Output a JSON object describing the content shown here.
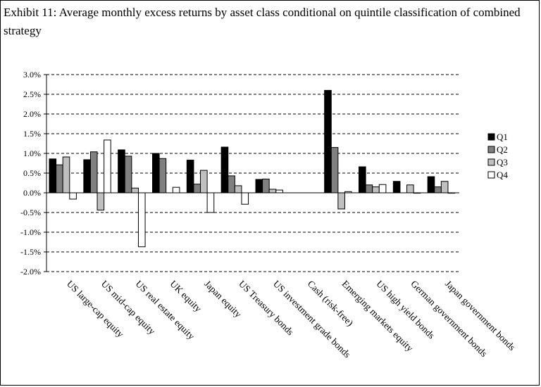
{
  "chart_data": {
    "type": "bar",
    "title": "Exhibit 11: Average monthly excess returns by asset class conditional on quintile classification of combined strategy",
    "xlabel": "",
    "ylabel": "",
    "ylim": [
      -0.02,
      0.03
    ],
    "yticks": [
      "3.0%",
      "2.5%",
      "2.0%",
      "1.5%",
      "1.0%",
      "0.5%",
      "0.0%",
      "-0.5%",
      "-1.0%",
      "-1.5%",
      "-2.0%"
    ],
    "grid": true,
    "legend_position": "right",
    "categories": [
      "US large-cap equity",
      "US mid-cap equity",
      "US real estate equity",
      "UK equity",
      "Japan equity",
      "US Treasury bonds",
      "US investment grade bonds",
      "Cash (risk-free)",
      "Emerging markets equity",
      "US high yield bonds",
      "German government bonds",
      "Japan government bonds"
    ],
    "series": [
      {
        "name": "Q1",
        "color": "#000000",
        "values": [
          0.0086,
          0.0084,
          0.0109,
          0.01,
          0.0083,
          0.0116,
          0.0034,
          0.0,
          0.026,
          0.0066,
          0.0029,
          0.0041
        ]
      },
      {
        "name": "Q2",
        "color": "#808080",
        "values": [
          0.0071,
          0.0104,
          0.0093,
          0.0087,
          0.0022,
          0.0043,
          0.0035,
          0.0,
          0.0115,
          0.002,
          0.0,
          0.0015
        ]
      },
      {
        "name": "Q3",
        "color": "#c0c0c0",
        "values": [
          0.0091,
          -0.0044,
          0.0012,
          0.0,
          0.0057,
          0.0018,
          0.0009,
          0.0,
          -0.0041,
          0.0015,
          0.002,
          0.0029
        ]
      },
      {
        "name": "Q4",
        "color": "#ffffff",
        "values": [
          -0.0016,
          0.0134,
          -0.0137,
          0.0014,
          -0.005,
          -0.0029,
          0.0007,
          0.0,
          0.0003,
          0.0021,
          -0.0001,
          -0.0001
        ]
      }
    ]
  }
}
